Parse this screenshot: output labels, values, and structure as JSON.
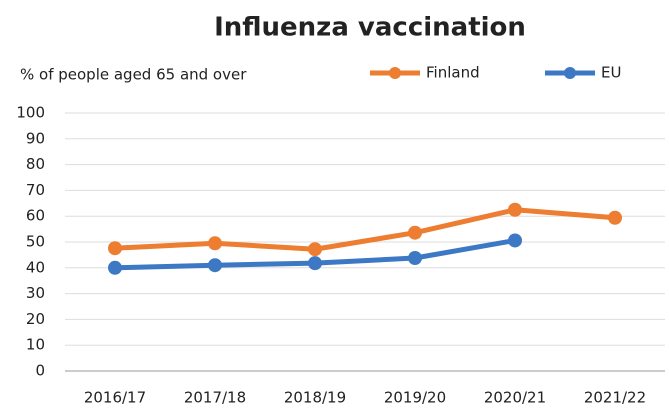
{
  "chart_data": {
    "type": "line",
    "title": "Influenza vaccination",
    "subtitle": "% of people aged 65 and over",
    "categories": [
      "2016/17",
      "2017/18",
      "2018/19",
      "2019/20",
      "2020/21",
      "2021/22"
    ],
    "series": [
      {
        "name": "Finland",
        "color": "#ed7d31",
        "values": [
          47.6,
          49.5,
          47.2,
          53.6,
          62.5,
          59.4
        ]
      },
      {
        "name": "EU",
        "color": "#3c78c3",
        "values": [
          40,
          41,
          41.8,
          43.8,
          50.6,
          null
        ]
      }
    ],
    "ylim": [
      0,
      100
    ],
    "yticks": [
      0,
      10,
      20,
      30,
      40,
      50,
      60,
      70,
      80,
      90,
      100
    ],
    "grid": true
  }
}
